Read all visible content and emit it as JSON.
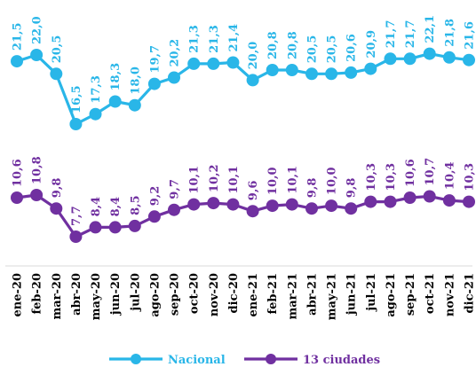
{
  "chart_data": {
    "type": "line",
    "categories": [
      "ene-20",
      "feb-20",
      "mar-20",
      "abr-20",
      "may-20",
      "jun-20",
      "jul-20",
      "ago-20",
      "sep-20",
      "oct-20",
      "nov-20",
      "dic-20",
      "ene-21",
      "feb-21",
      "mar-21",
      "abr-21",
      "may-21",
      "jun-21",
      "jul-21",
      "ago-21",
      "sep-21",
      "oct-21",
      "nov-21",
      "dic-21"
    ],
    "series": [
      {
        "name": "Nacional",
        "color": "#29B6E8",
        "values": [
          21.5,
          22.0,
          20.5,
          16.5,
          17.3,
          18.3,
          18.0,
          19.7,
          20.2,
          21.3,
          21.3,
          21.4,
          20.0,
          20.8,
          20.8,
          20.5,
          20.5,
          20.6,
          20.9,
          21.7,
          21.7,
          22.1,
          21.8,
          21.6
        ],
        "labels": [
          "21,5",
          "22,0",
          "20,5",
          "16,5",
          "17,3",
          "18,3",
          "18,0",
          "19,7",
          "20,2",
          "21,3",
          "21,3",
          "21,4",
          "20,0",
          "20,8",
          "20,8",
          "20,5",
          "20,5",
          "20,6",
          "20,9",
          "21,7",
          "21,7",
          "22,1",
          "21,8",
          "21,6"
        ]
      },
      {
        "name": "13 ciudades",
        "color": "#7030A0",
        "values": [
          10.6,
          10.8,
          9.8,
          7.7,
          8.4,
          8.4,
          8.5,
          9.2,
          9.7,
          10.1,
          10.2,
          10.1,
          9.6,
          10.0,
          10.1,
          9.8,
          10.0,
          9.8,
          10.3,
          10.3,
          10.6,
          10.7,
          10.4,
          10.3
        ],
        "labels": [
          "10,6",
          "10,8",
          "9,8",
          "7,7",
          "8,4",
          "8,4",
          "8,5",
          "9,2",
          "9,7",
          "10,1",
          "10,2",
          "10,1",
          "9,6",
          "10,0",
          "10,1",
          "9,8",
          "10,0",
          "9,8",
          "10,3",
          "10,3",
          "10,6",
          "10,7",
          "10,4",
          "10,3"
        ]
      }
    ],
    "legend": "bottom",
    "grid": false,
    "title": "",
    "xlabel": "",
    "ylabel": ""
  }
}
